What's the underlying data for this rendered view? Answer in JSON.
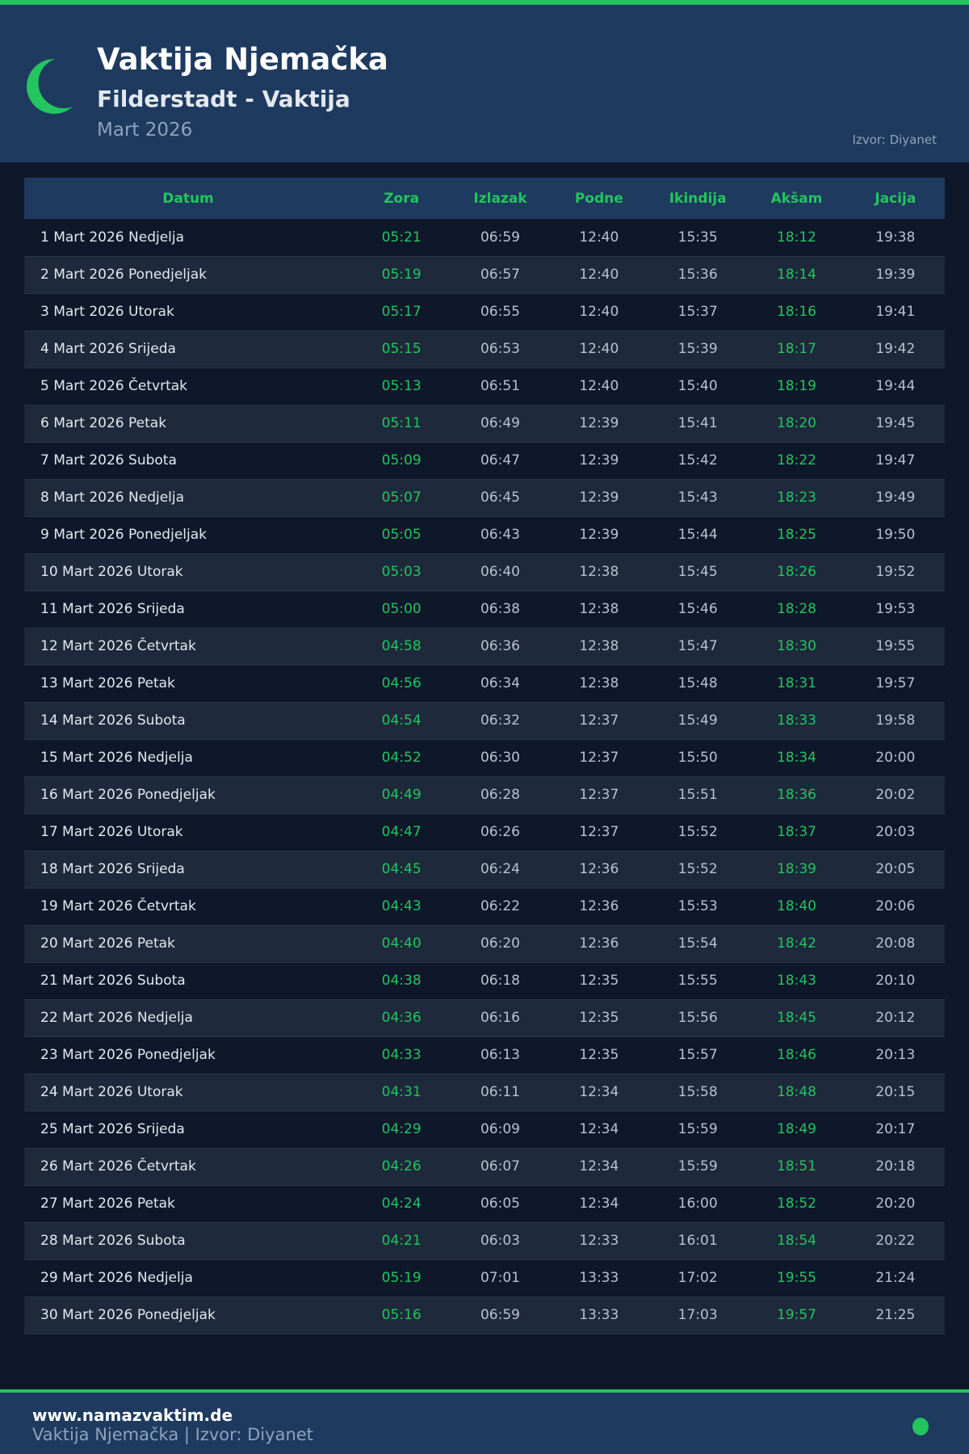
{
  "header": {
    "title": "Vaktija Njemačka",
    "subtitle": "Filderstadt - Vaktija",
    "month": "Mart 2026",
    "source": "Izvor: Diyanet",
    "icon": "crescent-moon-icon"
  },
  "colors": {
    "accent": "#22c55e",
    "header_bg": "#1e3a5f",
    "page_bg": "#0f172a"
  },
  "table": {
    "columns": [
      "Datum",
      "Zora",
      "Izlazak",
      "Podne",
      "Ikindija",
      "Akšam",
      "Jacija"
    ],
    "rows": [
      [
        "1 Mart 2026 Nedjelja",
        "05:21",
        "06:59",
        "12:40",
        "15:35",
        "18:12",
        "19:38"
      ],
      [
        "2 Mart 2026 Ponedjeljak",
        "05:19",
        "06:57",
        "12:40",
        "15:36",
        "18:14",
        "19:39"
      ],
      [
        "3 Mart 2026 Utorak",
        "05:17",
        "06:55",
        "12:40",
        "15:37",
        "18:16",
        "19:41"
      ],
      [
        "4 Mart 2026 Srijeda",
        "05:15",
        "06:53",
        "12:40",
        "15:39",
        "18:17",
        "19:42"
      ],
      [
        "5 Mart 2026 Četvrtak",
        "05:13",
        "06:51",
        "12:40",
        "15:40",
        "18:19",
        "19:44"
      ],
      [
        "6 Mart 2026 Petak",
        "05:11",
        "06:49",
        "12:39",
        "15:41",
        "18:20",
        "19:45"
      ],
      [
        "7 Mart 2026 Subota",
        "05:09",
        "06:47",
        "12:39",
        "15:42",
        "18:22",
        "19:47"
      ],
      [
        "8 Mart 2026 Nedjelja",
        "05:07",
        "06:45",
        "12:39",
        "15:43",
        "18:23",
        "19:49"
      ],
      [
        "9 Mart 2026 Ponedjeljak",
        "05:05",
        "06:43",
        "12:39",
        "15:44",
        "18:25",
        "19:50"
      ],
      [
        "10 Mart 2026 Utorak",
        "05:03",
        "06:40",
        "12:38",
        "15:45",
        "18:26",
        "19:52"
      ],
      [
        "11 Mart 2026 Srijeda",
        "05:00",
        "06:38",
        "12:38",
        "15:46",
        "18:28",
        "19:53"
      ],
      [
        "12 Mart 2026 Četvrtak",
        "04:58",
        "06:36",
        "12:38",
        "15:47",
        "18:30",
        "19:55"
      ],
      [
        "13 Mart 2026 Petak",
        "04:56",
        "06:34",
        "12:38",
        "15:48",
        "18:31",
        "19:57"
      ],
      [
        "14 Mart 2026 Subota",
        "04:54",
        "06:32",
        "12:37",
        "15:49",
        "18:33",
        "19:58"
      ],
      [
        "15 Mart 2026 Nedjelja",
        "04:52",
        "06:30",
        "12:37",
        "15:50",
        "18:34",
        "20:00"
      ],
      [
        "16 Mart 2026 Ponedjeljak",
        "04:49",
        "06:28",
        "12:37",
        "15:51",
        "18:36",
        "20:02"
      ],
      [
        "17 Mart 2026 Utorak",
        "04:47",
        "06:26",
        "12:37",
        "15:52",
        "18:37",
        "20:03"
      ],
      [
        "18 Mart 2026 Srijeda",
        "04:45",
        "06:24",
        "12:36",
        "15:52",
        "18:39",
        "20:05"
      ],
      [
        "19 Mart 2026 Četvrtak",
        "04:43",
        "06:22",
        "12:36",
        "15:53",
        "18:40",
        "20:06"
      ],
      [
        "20 Mart 2026 Petak",
        "04:40",
        "06:20",
        "12:36",
        "15:54",
        "18:42",
        "20:08"
      ],
      [
        "21 Mart 2026 Subota",
        "04:38",
        "06:18",
        "12:35",
        "15:55",
        "18:43",
        "20:10"
      ],
      [
        "22 Mart 2026 Nedjelja",
        "04:36",
        "06:16",
        "12:35",
        "15:56",
        "18:45",
        "20:12"
      ],
      [
        "23 Mart 2026 Ponedjeljak",
        "04:33",
        "06:13",
        "12:35",
        "15:57",
        "18:46",
        "20:13"
      ],
      [
        "24 Mart 2026 Utorak",
        "04:31",
        "06:11",
        "12:34",
        "15:58",
        "18:48",
        "20:15"
      ],
      [
        "25 Mart 2026 Srijeda",
        "04:29",
        "06:09",
        "12:34",
        "15:59",
        "18:49",
        "20:17"
      ],
      [
        "26 Mart 2026 Četvrtak",
        "04:26",
        "06:07",
        "12:34",
        "15:59",
        "18:51",
        "20:18"
      ],
      [
        "27 Mart 2026 Petak",
        "04:24",
        "06:05",
        "12:34",
        "16:00",
        "18:52",
        "20:20"
      ],
      [
        "28 Mart 2026 Subota",
        "04:21",
        "06:03",
        "12:33",
        "16:01",
        "18:54",
        "20:22"
      ],
      [
        "29 Mart 2026 Nedjelja",
        "05:19",
        "07:01",
        "13:33",
        "17:02",
        "19:55",
        "21:24"
      ],
      [
        "30 Mart 2026 Ponedjeljak",
        "05:16",
        "06:59",
        "13:33",
        "17:03",
        "19:57",
        "21:25"
      ]
    ]
  },
  "footer": {
    "site": "www.namazvaktim.de",
    "subtitle": "Vaktija Njemačka | Izvor: Diyanet"
  }
}
